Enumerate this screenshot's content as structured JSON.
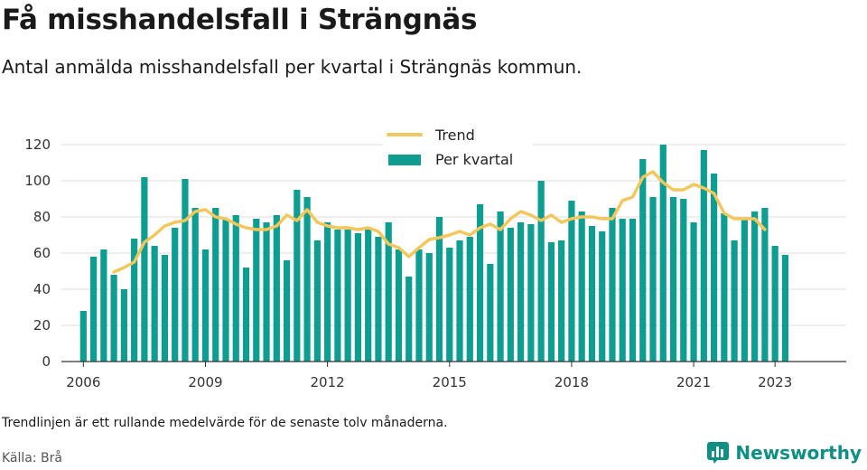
{
  "title": "Få misshandelsfall i Strängnäs",
  "subtitle": "Antal anmälda misshandelsfall per kvartal i Strängnäs kommun.",
  "note": "Trendlinjen är ett rullande medelvärde för de senaste tolv månaderna.",
  "source": "Källa: Brå",
  "brand": {
    "name": "Newsworthy",
    "icon": "bar-chart-logo-icon"
  },
  "colors": {
    "bars": "#0e9e91",
    "trend": "#f2c75c",
    "brand": "#0e8f83"
  },
  "chart_data": {
    "type": "bar",
    "x_start": 2006,
    "x_step": 0.25,
    "xticks": [
      "2006",
      "2009",
      "2012",
      "2015",
      "2018",
      "2021",
      "2023"
    ],
    "xtick_values": [
      2006,
      2009,
      2012,
      2015,
      2018,
      2021,
      2023
    ],
    "ylim": [
      0,
      120
    ],
    "yticks": [
      0,
      20,
      40,
      60,
      80,
      100,
      120
    ],
    "grid": true,
    "legend_placement": "top-center",
    "series": [
      {
        "name": "Per kvartal",
        "type": "bar",
        "values": [
          28,
          58,
          62,
          48,
          40,
          68,
          102,
          64,
          59,
          74,
          101,
          85,
          62,
          85,
          79,
          81,
          52,
          79,
          77,
          81,
          56,
          95,
          91,
          67,
          77,
          73,
          73,
          71,
          73,
          69,
          77,
          62,
          47,
          62,
          60,
          80,
          63,
          67,
          69,
          87,
          54,
          83,
          74,
          77,
          76,
          100,
          66,
          67,
          89,
          83,
          75,
          72,
          85,
          79,
          79,
          112,
          91,
          120,
          91,
          90,
          77,
          117,
          104,
          82,
          67,
          79,
          83,
          85,
          64,
          59
        ]
      },
      {
        "name": "Trend",
        "type": "line",
        "x_start": 2006.75,
        "values": [
          49.5,
          52,
          55,
          66,
          70,
          75,
          77,
          78,
          83,
          84,
          80,
          79,
          76,
          74,
          73,
          73,
          75,
          81,
          78,
          84,
          77,
          75,
          74,
          74,
          73,
          74,
          72,
          65,
          63,
          58,
          63,
          67.5,
          68.5,
          70,
          72,
          70,
          74,
          76,
          73,
          79,
          83,
          81,
          78,
          81,
          77,
          79,
          80,
          80,
          79,
          79,
          89,
          91,
          102,
          105,
          99,
          95,
          95,
          98,
          96,
          93,
          82,
          79,
          79,
          79,
          73
        ]
      }
    ]
  }
}
